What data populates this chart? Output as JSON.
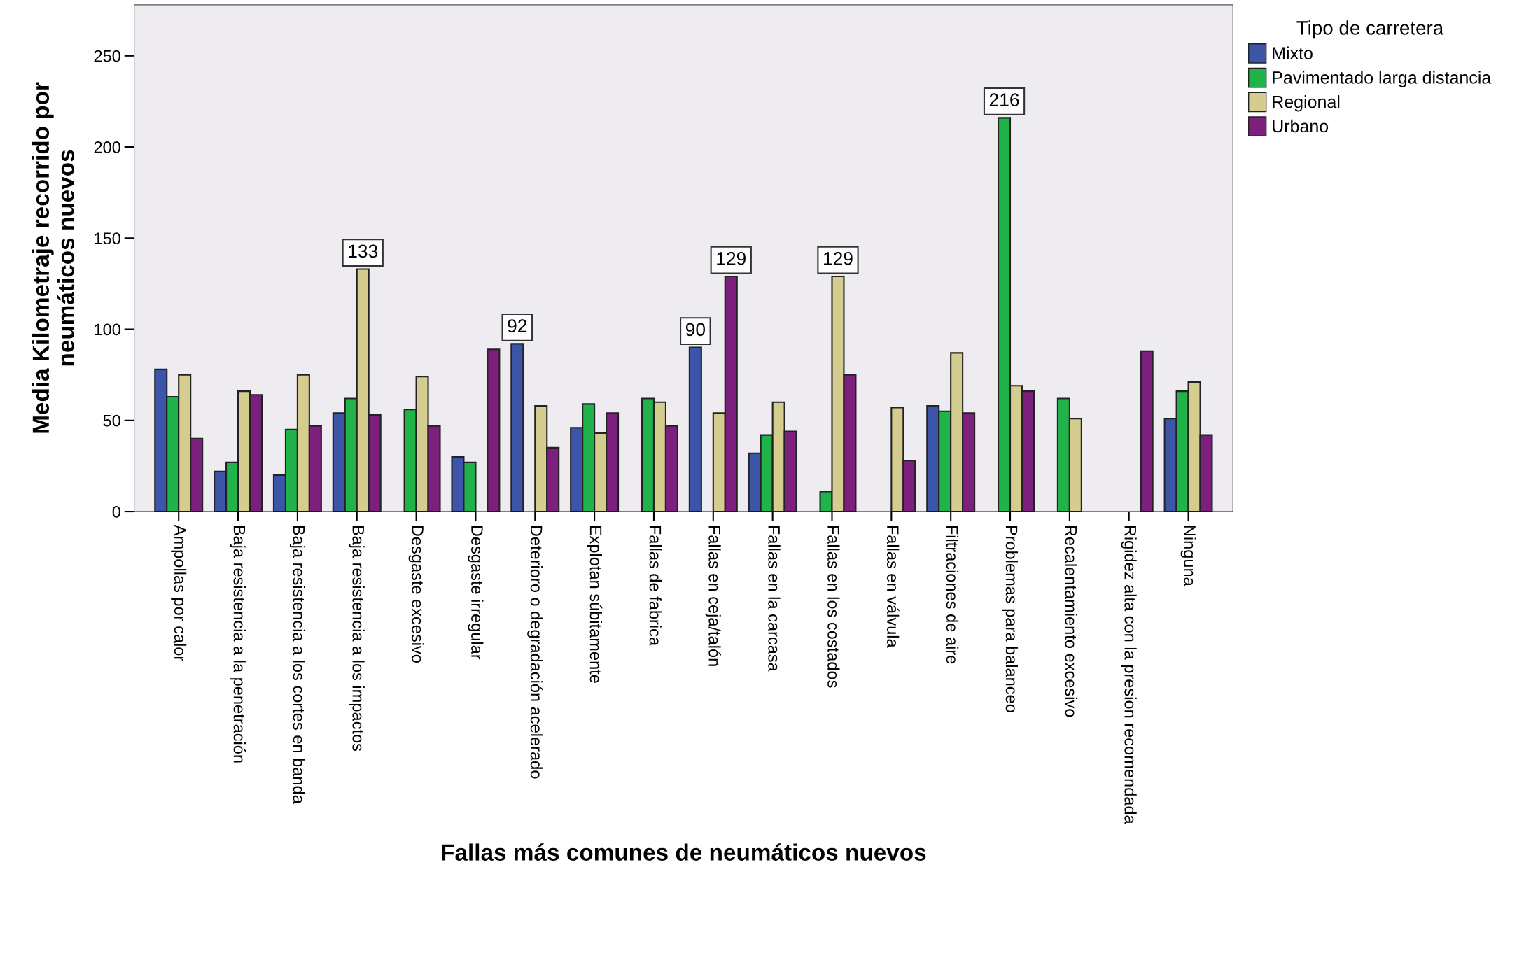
{
  "chart_data": {
    "type": "bar",
    "xlabel": "Fallas más comunes de neumáticos nuevos",
    "ylabel": "Media Kilometraje recorrido por\nneumáticos nuevos",
    "legend_title": "Tipo de carretera",
    "legend": "top right",
    "grid": false,
    "categories": [
      "Ampollas por calor",
      "Baja resistencia a la penetración",
      "Baja resistencia a los cortes en banda",
      "Baja resistencia a los impactos",
      "Desgaste excesivo",
      "Desgaste irregular",
      "Deterioro o degradación acelerado",
      "Explotan súbitamente",
      "Fallas de fabrica",
      "Fallas en ceja/talón",
      "Fallas en la carcasa",
      "Fallas en los costados",
      "Fallas en válvula",
      "Filtraciones de aire",
      "Problemas para balanceo",
      "Recalentamiento excesivo",
      "Rigidez alta con la presion recomendada",
      "Ninguna"
    ],
    "ylim": [
      0,
      278
    ],
    "yticks": [
      0,
      50,
      100,
      150,
      200,
      250
    ],
    "series": [
      {
        "name": "Mixto",
        "color": "#3d55a8",
        "values": [
          78,
          22,
          20,
          54,
          null,
          30,
          92,
          46,
          null,
          90,
          32,
          null,
          null,
          58,
          null,
          null,
          null,
          51
        ],
        "value_labels": [
          null,
          null,
          null,
          null,
          null,
          null,
          "92",
          null,
          null,
          "90",
          null,
          null,
          null,
          null,
          null,
          null,
          null,
          null
        ]
      },
      {
        "name": "Pavimentado larga distancia",
        "color": "#22b24a",
        "values": [
          63,
          27,
          45,
          62,
          56,
          27,
          null,
          59,
          62,
          null,
          42,
          11,
          null,
          55,
          216,
          62,
          null,
          66
        ],
        "value_labels": [
          null,
          null,
          null,
          null,
          null,
          null,
          null,
          null,
          null,
          null,
          null,
          null,
          null,
          null,
          "216",
          null,
          null,
          null
        ]
      },
      {
        "name": "Regional",
        "color": "#d5cd8f",
        "values": [
          75,
          66,
          75,
          133,
          74,
          null,
          58,
          43,
          60,
          54,
          60,
          129,
          57,
          87,
          69,
          51,
          null,
          71
        ],
        "value_labels": [
          null,
          null,
          null,
          "133",
          null,
          null,
          null,
          null,
          null,
          null,
          null,
          "129",
          null,
          null,
          null,
          null,
          null,
          null
        ]
      },
      {
        "name": "Urbano",
        "color": "#7d1f7d",
        "values": [
          40,
          64,
          47,
          53,
          47,
          89,
          35,
          54,
          47,
          129,
          44,
          75,
          28,
          54,
          66,
          null,
          88,
          42
        ],
        "value_labels": [
          null,
          null,
          null,
          null,
          null,
          null,
          null,
          null,
          null,
          "129",
          null,
          null,
          null,
          null,
          null,
          null,
          null,
          null
        ]
      }
    ]
  }
}
